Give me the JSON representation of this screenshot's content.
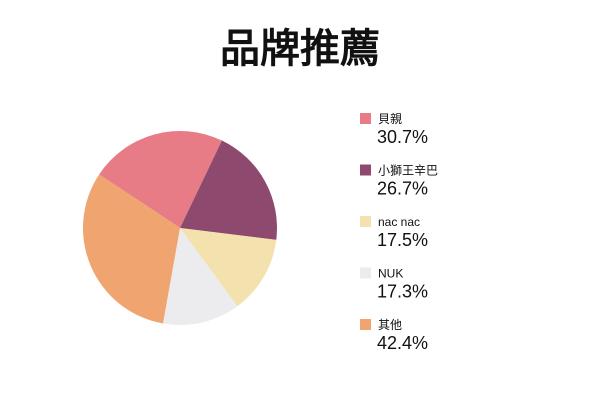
{
  "chart_data": {
    "type": "pie",
    "title": "品牌推薦",
    "categories": [
      "貝親",
      "小獅王辛巴",
      "nac nac",
      "NUK",
      "其他"
    ],
    "values": [
      30.7,
      26.7,
      17.5,
      17.3,
      42.4
    ],
    "value_labels": [
      "30.7%",
      "26.7%",
      "17.5%",
      "17.3%",
      "42.4%"
    ],
    "colors": [
      "#e87c86",
      "#8e4a6e",
      "#f3e1ae",
      "#ececee",
      "#f0a46f"
    ]
  }
}
